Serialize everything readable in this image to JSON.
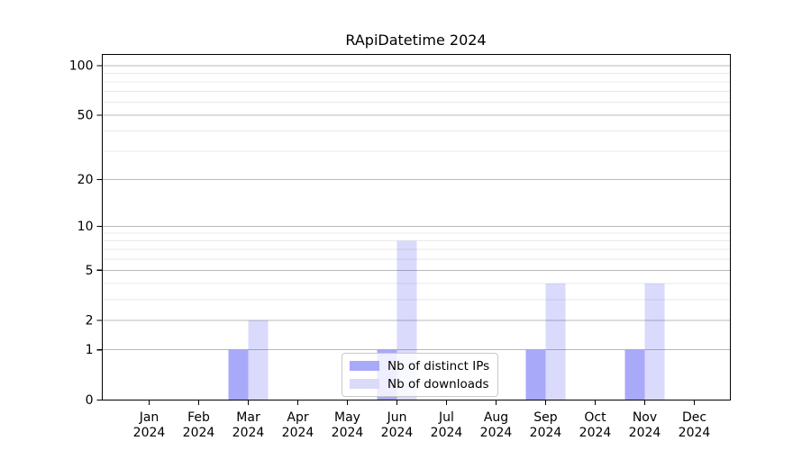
{
  "chart_data": {
    "type": "bar",
    "title": "RApiDatetime 2024",
    "categories": [
      "Jan 2024",
      "Feb 2024",
      "Mar 2024",
      "Apr 2024",
      "May 2024",
      "Jun 2024",
      "Jul 2024",
      "Aug 2024",
      "Sep 2024",
      "Oct 2024",
      "Nov 2024",
      "Dec 2024"
    ],
    "x_axis": {
      "months": [
        "Jan",
        "Feb",
        "Mar",
        "Apr",
        "May",
        "Jun",
        "Jul",
        "Aug",
        "Sep",
        "Oct",
        "Nov",
        "Dec"
      ],
      "year": "2024"
    },
    "series": [
      {
        "name": "Nb of distinct IPs",
        "color": "#a9a9f9",
        "fill": "rgba(55,55,243,0.43)",
        "values": [
          0,
          0,
          1,
          0,
          0,
          1,
          0,
          0,
          1,
          0,
          1,
          0
        ]
      },
      {
        "name": "Nb of downloads",
        "color": "#dadaf9",
        "fill": "rgba(55,55,243,0.185)",
        "values": [
          0,
          0,
          2,
          0,
          0,
          8,
          0,
          0,
          4,
          0,
          4,
          0
        ]
      }
    ],
    "xlabel": "",
    "ylabel": "",
    "y_scale": "log1p",
    "ylim": [
      0,
      117
    ],
    "y_major_ticks": [
      0,
      1,
      2,
      5,
      10,
      20,
      50,
      100
    ],
    "y_minor_ticks": [
      3,
      4,
      6,
      7,
      8,
      9,
      30,
      40,
      60,
      70,
      80,
      90
    ],
    "grid": "horizontal",
    "legend_position": "lower center",
    "colors": {
      "grid_major": "#b8b8b8",
      "grid_minor": "#e9e9e9",
      "axis": "#000000",
      "background": "#ffffff"
    }
  }
}
